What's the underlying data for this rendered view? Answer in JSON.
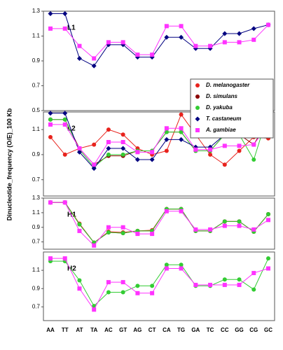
{
  "chart_data": [
    {
      "type": "line",
      "title": "L1",
      "ylabel": "Dinucleotide_frequency (O/E)_100 Kb",
      "categories": [
        "AA",
        "TT",
        "AT",
        "TA",
        "AC",
        "GT",
        "AG",
        "CT",
        "CA",
        "TG",
        "GA",
        "TC",
        "CC",
        "GG",
        "CG",
        "GC"
      ],
      "ylim": [
        0.5,
        1.3
      ],
      "yticks": [
        0.5,
        0.7,
        0.9,
        1.1,
        1.3
      ],
      "series": [
        {
          "name": "T. castaneum",
          "color": "#000080",
          "marker": "diamond",
          "values": [
            1.28,
            1.28,
            0.92,
            0.86,
            1.03,
            1.03,
            0.93,
            0.93,
            1.09,
            1.09,
            1.0,
            1.0,
            1.12,
            1.12,
            1.16,
            1.19
          ]
        },
        {
          "name": "A. gambiae",
          "color": "#ff33ff",
          "marker": "square",
          "values": [
            1.16,
            1.16,
            1.02,
            0.92,
            1.05,
            1.05,
            0.95,
            0.95,
            1.18,
            1.18,
            1.02,
            1.02,
            1.05,
            1.05,
            1.07,
            1.19
          ]
        }
      ]
    },
    {
      "type": "line",
      "title": "L2",
      "legend": "upper right",
      "categories": [
        "AA",
        "TT",
        "AT",
        "TA",
        "AC",
        "GT",
        "AG",
        "CT",
        "CA",
        "TG",
        "GA",
        "TC",
        "CC",
        "GG",
        "CG",
        "GC"
      ],
      "ylim": [
        0.57,
        1.24
      ],
      "yticks": [
        0.7,
        0.9,
        1.1
      ],
      "series": [
        {
          "name": "D. melanogaster",
          "color": "#e8231d",
          "marker": "circle",
          "values": [
            1.04,
            0.9,
            0.95,
            0.98,
            1.1,
            1.06,
            0.95,
            0.9,
            0.93,
            1.22,
            1.06,
            0.9,
            0.82,
            0.93,
            1.04,
            1.03
          ]
        },
        {
          "name": "D. simulans",
          "color": "#8b0000",
          "marker": "circle",
          "values": [
            1.18,
            1.18,
            0.95,
            0.82,
            0.89,
            0.89,
            0.93,
            0.93,
            1.08,
            1.08,
            0.93,
            0.93,
            1.06,
            1.06,
            0.98,
            1.18
          ]
        },
        {
          "name": "D. yakuba",
          "color": "#33cc33",
          "marker": "circle",
          "values": [
            1.18,
            1.18,
            0.94,
            0.8,
            0.9,
            0.9,
            0.93,
            0.93,
            1.08,
            1.08,
            0.93,
            0.93,
            1.06,
            1.06,
            0.86,
            1.23
          ]
        },
        {
          "name": "T. castaneum",
          "color": "#000080",
          "marker": "diamond",
          "values": [
            1.23,
            1.23,
            0.92,
            0.79,
            0.95,
            0.95,
            0.86,
            0.86,
            1.02,
            1.02,
            0.96,
            0.96,
            1.06,
            1.06,
            1.15,
            1.1
          ]
        },
        {
          "name": "A. gambiae",
          "color": "#ff33ff",
          "marker": "square",
          "values": [
            1.14,
            1.14,
            0.95,
            0.82,
            1.0,
            1.0,
            0.92,
            0.92,
            1.11,
            1.11,
            0.94,
            0.94,
            0.97,
            0.97,
            0.98,
            1.14
          ]
        }
      ]
    },
    {
      "type": "line",
      "title": "H1",
      "categories": [
        "AA",
        "TT",
        "AT",
        "TA",
        "AC",
        "GT",
        "AG",
        "CT",
        "CA",
        "TG",
        "GA",
        "TC",
        "CC",
        "GG",
        "CG",
        "GC"
      ],
      "ylim": [
        0.6,
        1.3
      ],
      "yticks": [
        0.7,
        0.9,
        1.1,
        1.3
      ],
      "series": [
        {
          "name": "D. melanogaster",
          "color": "#e8231d",
          "marker": "circle",
          "values": [
            1.24,
            1.24,
            0.95,
            0.69,
            0.84,
            0.83,
            0.85,
            0.86,
            1.15,
            1.15,
            0.85,
            0.85,
            0.98,
            0.98,
            0.84,
            1.08
          ]
        },
        {
          "name": "D. simulans",
          "color": "#8b0000",
          "marker": "circle",
          "values": [
            1.24,
            1.24,
            0.94,
            0.69,
            0.83,
            0.82,
            0.85,
            0.85,
            1.15,
            1.15,
            0.85,
            0.85,
            0.98,
            0.98,
            0.84,
            1.08
          ]
        },
        {
          "name": "D. yakuba",
          "color": "#33cc33",
          "marker": "circle",
          "values": [
            1.24,
            1.24,
            0.94,
            0.69,
            0.83,
            0.82,
            0.85,
            0.85,
            1.15,
            1.15,
            0.85,
            0.85,
            0.98,
            0.98,
            0.84,
            1.08
          ]
        },
        {
          "name": "A. gambiae",
          "color": "#ff33ff",
          "marker": "square",
          "values": [
            1.24,
            1.24,
            0.85,
            0.65,
            0.9,
            0.9,
            0.81,
            0.81,
            1.12,
            1.12,
            0.87,
            0.87,
            0.92,
            0.92,
            0.87,
            1.0
          ]
        }
      ]
    },
    {
      "type": "line",
      "title": "H2",
      "categories": [
        "AA",
        "TT",
        "AT",
        "TA",
        "AC",
        "GT",
        "AG",
        "CT",
        "CA",
        "TG",
        "GA",
        "TC",
        "CC",
        "GG",
        "CG",
        "GC"
      ],
      "ylim": [
        0.55,
        1.3
      ],
      "yticks": [
        0.7,
        0.9,
        1.1
      ],
      "series": [
        {
          "name": "D. yakuba",
          "color": "#33cc33",
          "marker": "circle",
          "values": [
            1.2,
            1.2,
            0.99,
            0.71,
            0.86,
            0.86,
            0.93,
            0.93,
            1.16,
            1.16,
            0.93,
            0.93,
            1.0,
            1.0,
            0.89,
            1.23
          ]
        },
        {
          "name": "A. gambiae",
          "color": "#ff33ff",
          "marker": "square",
          "values": [
            1.23,
            1.23,
            0.9,
            0.67,
            0.97,
            0.97,
            0.85,
            0.85,
            1.12,
            1.12,
            0.94,
            0.94,
            0.94,
            0.94,
            1.07,
            1.12
          ]
        }
      ]
    }
  ]
}
